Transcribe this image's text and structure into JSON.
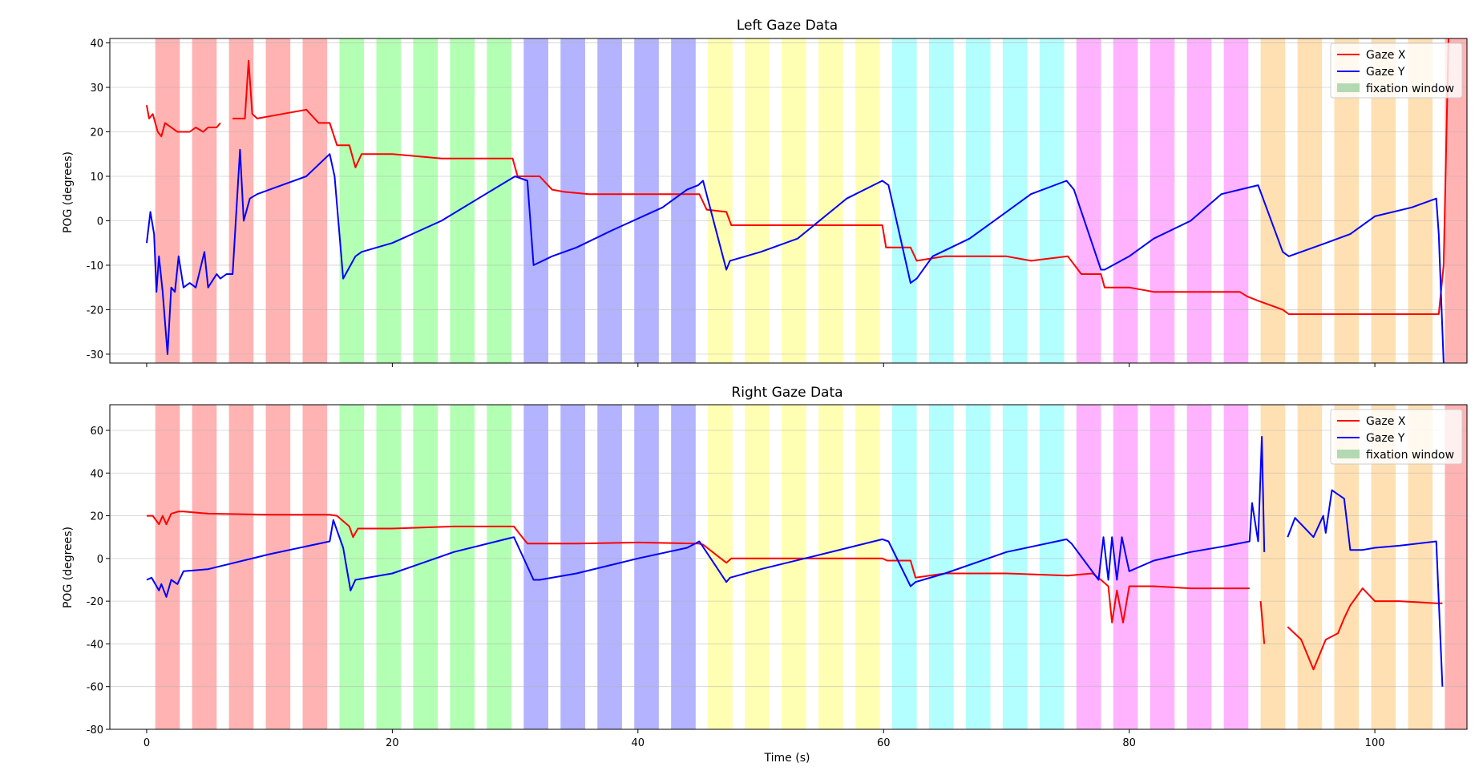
{
  "figure": {
    "xlabel": "Time (s)",
    "x_ticks": [
      0,
      20,
      40,
      60,
      80,
      100
    ],
    "xlim": [
      -3,
      107.5
    ]
  },
  "legend": {
    "placement": "top-right",
    "items": [
      {
        "label": "Gaze X",
        "kind": "line",
        "color": "#ff0000"
      },
      {
        "label": "Gaze Y",
        "kind": "line",
        "color": "#0000ff"
      },
      {
        "label": "fixation window",
        "kind": "patch",
        "color": "#b3d9b3"
      }
    ]
  },
  "fixation_windows": [
    {
      "start": 0.7,
      "end": 2.7,
      "color": "#ffb3b3"
    },
    {
      "start": 3.7,
      "end": 5.7,
      "color": "#ffb3b3"
    },
    {
      "start": 6.7,
      "end": 8.7,
      "color": "#ffb3b3"
    },
    {
      "start": 9.7,
      "end": 11.7,
      "color": "#ffb3b3"
    },
    {
      "start": 12.7,
      "end": 14.7,
      "color": "#ffb3b3"
    },
    {
      "start": 15.7,
      "end": 17.7,
      "color": "#b3ffb3"
    },
    {
      "start": 18.7,
      "end": 20.7,
      "color": "#b3ffb3"
    },
    {
      "start": 21.7,
      "end": 23.7,
      "color": "#b3ffb3"
    },
    {
      "start": 24.7,
      "end": 26.7,
      "color": "#b3ffb3"
    },
    {
      "start": 27.7,
      "end": 29.7,
      "color": "#b3ffb3"
    },
    {
      "start": 30.7,
      "end": 32.7,
      "color": "#b3b3ff"
    },
    {
      "start": 33.7,
      "end": 35.7,
      "color": "#b3b3ff"
    },
    {
      "start": 36.7,
      "end": 38.7,
      "color": "#b3b3ff"
    },
    {
      "start": 39.7,
      "end": 41.7,
      "color": "#b3b3ff"
    },
    {
      "start": 42.7,
      "end": 44.7,
      "color": "#b3b3ff"
    },
    {
      "start": 45.7,
      "end": 47.7,
      "color": "#ffffb3"
    },
    {
      "start": 48.7,
      "end": 50.7,
      "color": "#ffffb3"
    },
    {
      "start": 51.7,
      "end": 53.7,
      "color": "#ffffb3"
    },
    {
      "start": 54.7,
      "end": 56.7,
      "color": "#ffffb3"
    },
    {
      "start": 57.7,
      "end": 59.7,
      "color": "#ffffb3"
    },
    {
      "start": 60.7,
      "end": 62.7,
      "color": "#b3ffff"
    },
    {
      "start": 63.7,
      "end": 65.7,
      "color": "#b3ffff"
    },
    {
      "start": 66.7,
      "end": 68.7,
      "color": "#b3ffff"
    },
    {
      "start": 69.7,
      "end": 71.7,
      "color": "#b3ffff"
    },
    {
      "start": 72.7,
      "end": 74.7,
      "color": "#b3ffff"
    },
    {
      "start": 75.7,
      "end": 77.7,
      "color": "#ffb3ff"
    },
    {
      "start": 78.7,
      "end": 80.7,
      "color": "#ffb3ff"
    },
    {
      "start": 81.7,
      "end": 83.7,
      "color": "#ffb3ff"
    },
    {
      "start": 84.7,
      "end": 86.7,
      "color": "#ffb3ff"
    },
    {
      "start": 87.7,
      "end": 89.7,
      "color": "#ffb3ff"
    },
    {
      "start": 90.7,
      "end": 92.7,
      "color": "#ffe0b3"
    },
    {
      "start": 93.7,
      "end": 95.7,
      "color": "#ffe0b3"
    },
    {
      "start": 96.7,
      "end": 98.7,
      "color": "#ffe0b3"
    },
    {
      "start": 99.7,
      "end": 101.7,
      "color": "#ffe0b3"
    },
    {
      "start": 102.7,
      "end": 104.7,
      "color": "#ffe0b3"
    },
    {
      "start": 105.7,
      "end": 107.5,
      "color": "#ffb3b3"
    }
  ],
  "chart_data": [
    {
      "type": "line",
      "title": "Left Gaze Data",
      "xlabel": "",
      "ylabel": "POG (degrees)",
      "ylim": [
        -32,
        41
      ],
      "y_ticks": [
        -30,
        -20,
        -10,
        0,
        10,
        20,
        30,
        40
      ],
      "grid": "horizontal",
      "series": [
        {
          "name": "Gaze X",
          "color": "#ff0000",
          "x": [
            0.0,
            0.2,
            0.5,
            0.9,
            1.2,
            1.5,
            2.0,
            2.5,
            3.0,
            3.5,
            4.0,
            4.6,
            5.0,
            5.7,
            6.0,
            null,
            7.0,
            7.6,
            8.0,
            8.3,
            8.6,
            9.0,
            11.0,
            13.0,
            14.0,
            14.9,
            15.5,
            16.5,
            17.0,
            17.5,
            20.0,
            24.0,
            27.0,
            29.8,
            30.2,
            32.0,
            33.0,
            34.0,
            36.0,
            40.0,
            44.5,
            45.0,
            45.6,
            47.2,
            47.6,
            50.0,
            55.0,
            59.9,
            60.2,
            62.2,
            62.7,
            65.0,
            70.0,
            72.0,
            75.0,
            76.1,
            77.7,
            78.0,
            80.0,
            82.0,
            85.0,
            87.5,
            89.0,
            89.6,
            90.5,
            92.5,
            93.0,
            95.0,
            100.0,
            103.0,
            105.2,
            105.6,
            106.0
          ],
          "y": [
            26,
            23,
            24,
            20,
            19,
            22,
            21,
            20,
            20,
            20,
            21,
            20,
            21,
            21,
            22,
            null,
            23,
            23,
            23,
            36,
            24,
            23,
            24,
            25,
            22,
            22,
            17,
            17,
            12,
            15,
            15,
            14,
            14,
            14,
            10,
            10,
            7,
            6.5,
            6,
            6,
            6,
            6,
            2.5,
            2,
            -1,
            -1,
            -1,
            -1,
            -6,
            -6,
            -9,
            -8,
            -8,
            -9,
            -8,
            -12,
            -12,
            -15,
            -15,
            -16,
            -16,
            -16,
            -16,
            -17,
            -18,
            -20,
            -21,
            -21,
            -21,
            -21,
            -21,
            -10,
            41
          ]
        },
        {
          "name": "Gaze Y",
          "color": "#0000ff",
          "x": [
            0.0,
            0.3,
            0.6,
            0.8,
            1.0,
            1.3,
            1.7,
            2.0,
            2.3,
            2.6,
            3.0,
            3.5,
            4.0,
            4.7,
            5.0,
            5.7,
            6.0,
            6.5,
            7.0,
            7.6,
            7.9,
            8.4,
            9.0,
            11.0,
            13.0,
            14.9,
            15.3,
            16.0,
            16.6,
            17.0,
            17.5,
            20.0,
            24.0,
            27.0,
            30.0,
            31.0,
            31.5,
            33.0,
            35.0,
            38.0,
            42.0,
            44.0,
            44.9,
            45.3,
            47.2,
            47.5,
            50.0,
            53.0,
            57.0,
            59.9,
            60.4,
            62.2,
            62.7,
            64.0,
            67.0,
            70.0,
            72.0,
            74.9,
            75.5,
            77.7,
            78.0,
            80.0,
            82.0,
            85.0,
            87.5,
            89.0,
            90.5,
            92.5,
            93.0,
            95.0,
            98.0,
            100.0,
            103.0,
            105.0,
            105.2,
            105.6
          ],
          "y": [
            -5,
            2,
            -3,
            -16,
            -8,
            -16,
            -30,
            -15,
            -16,
            -8,
            -15,
            -14,
            -15,
            -7,
            -15,
            -12,
            -13,
            -12,
            -12,
            16,
            0,
            5,
            6,
            8,
            10,
            15,
            10,
            -13,
            -10,
            -8,
            -7,
            -5,
            0,
            5,
            10,
            9,
            -10,
            -8,
            -6,
            -2,
            3,
            7,
            8,
            9,
            -11,
            -9,
            -7,
            -4,
            5,
            9,
            8,
            -14,
            -13,
            -8,
            -4,
            2,
            6,
            9,
            7,
            -11,
            -11,
            -8,
            -4,
            0,
            6,
            7,
            8,
            -7,
            -8,
            -6,
            -3,
            1,
            3,
            5,
            -3,
            -32
          ]
        }
      ]
    },
    {
      "type": "line",
      "title": "Right Gaze Data",
      "xlabel": "Time (s)",
      "ylabel": "POG (degrees)",
      "ylim": [
        -80,
        72
      ],
      "y_ticks": [
        -80,
        -60,
        -40,
        -20,
        0,
        20,
        40,
        60
      ],
      "grid": "horizontal",
      "series": [
        {
          "name": "Gaze X",
          "color": "#ff0000",
          "x": [
            0.0,
            0.5,
            1.0,
            1.3,
            1.6,
            2.0,
            2.6,
            3.0,
            5.0,
            10.0,
            14.9,
            15.5,
            16.5,
            16.8,
            17.2,
            20.0,
            25.0,
            29.9,
            30.3,
            31.0,
            31.5,
            35.0,
            40.0,
            44.9,
            45.3,
            47.2,
            47.6,
            50.0,
            55.0,
            59.9,
            60.3,
            62.2,
            62.6,
            65.0,
            70.0,
            75.0,
            77.0,
            77.7,
            78.3,
            78.6,
            79.0,
            79.5,
            80.0,
            82.0,
            85.0,
            88.0,
            89.8,
            null,
            90.7,
            91.0,
            null,
            92.9,
            94.0,
            95.0,
            96.0,
            97.0,
            97.5,
            98.0,
            99.0,
            100.0,
            102.0,
            105.0,
            105.5
          ],
          "y": [
            20,
            20,
            16,
            20,
            16,
            21,
            22,
            22,
            21,
            20.5,
            20.5,
            20,
            15,
            10,
            14,
            14,
            15,
            15,
            12,
            7,
            7,
            7,
            7.5,
            7,
            6.5,
            -2,
            0,
            0,
            0,
            0,
            -1,
            -1,
            -9,
            -7,
            -7,
            -8,
            -7,
            -10,
            -13,
            -30,
            -15,
            -30,
            -13,
            -13,
            -14,
            -14,
            -14,
            null,
            -20,
            -40,
            null,
            -32,
            -38,
            -52,
            -38,
            -35,
            -28,
            -22,
            -14,
            -20,
            -20,
            -21,
            -21
          ]
        },
        {
          "name": "Gaze Y",
          "color": "#0000ff",
          "x": [
            0.0,
            0.4,
            1.0,
            1.2,
            1.6,
            2.0,
            2.5,
            3.0,
            5.0,
            10.0,
            14.9,
            15.2,
            16.0,
            16.6,
            17.0,
            20.0,
            25.0,
            29.9,
            30.3,
            31.5,
            32.0,
            35.0,
            40.0,
            44.0,
            45.0,
            47.2,
            47.5,
            50.0,
            55.0,
            59.9,
            60.4,
            62.2,
            62.6,
            65.0,
            70.0,
            74.9,
            75.3,
            77.5,
            77.9,
            78.3,
            78.6,
            79.0,
            79.4,
            80.0,
            82.0,
            85.0,
            88.0,
            89.8,
            90.0,
            90.5,
            90.8,
            91.0,
            null,
            92.9,
            93.5,
            95.0,
            95.8,
            96.0,
            96.5,
            97.0,
            97.5,
            98.0,
            99.0,
            100.0,
            102.0,
            105.0,
            105.5
          ],
          "y": [
            -10,
            -9,
            -15,
            -12,
            -18,
            -10,
            -12,
            -6,
            -5,
            2,
            8,
            18,
            5,
            -15,
            -10,
            -7,
            3,
            10,
            5,
            -10,
            -10,
            -7,
            0,
            5,
            8,
            -11,
            -9,
            -5,
            2,
            9,
            8,
            -13,
            -11,
            -7,
            3,
            9,
            7,
            -10,
            10,
            -10,
            10,
            -10,
            10,
            -6,
            -1,
            3,
            6,
            8,
            26,
            8,
            57,
            3,
            null,
            10,
            19,
            10,
            20,
            12,
            32,
            30,
            28,
            4,
            4,
            5,
            6,
            8,
            -60
          ]
        }
      ]
    }
  ]
}
